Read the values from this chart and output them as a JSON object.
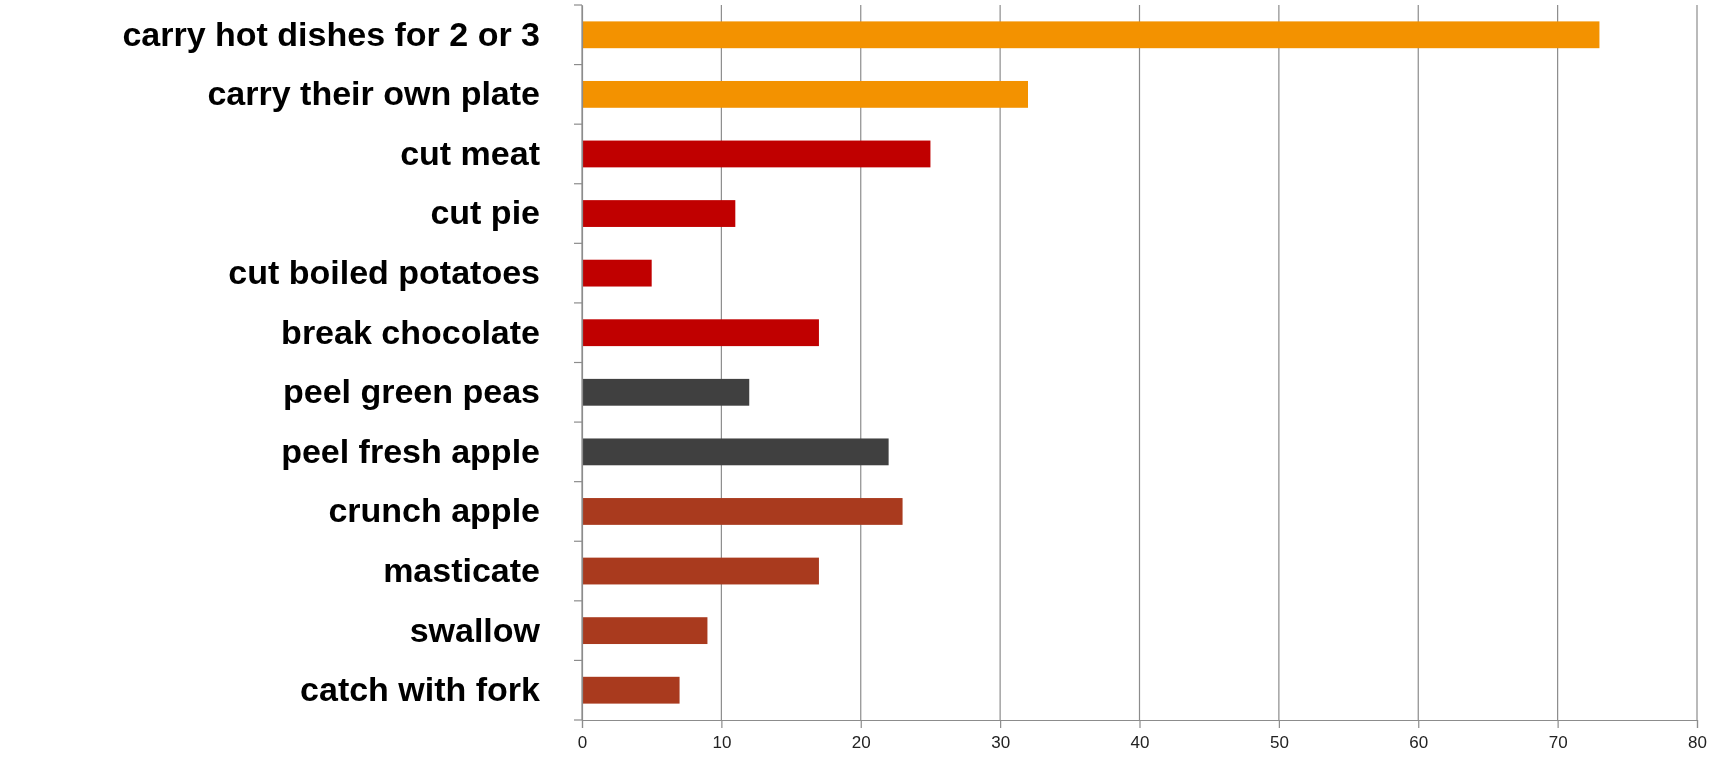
{
  "chart_data": {
    "type": "bar",
    "orientation": "horizontal",
    "categories": [
      "carry hot dishes for 2 or 3",
      "carry their own plate",
      "cut meat",
      "cut pie",
      "cut boiled potatoes",
      "break chocolate",
      "peel green peas",
      "peel fresh apple",
      "crunch apple",
      "masticate",
      "swallow",
      "catch with fork"
    ],
    "values": [
      73,
      32,
      25,
      11,
      5,
      17,
      12,
      22,
      23,
      17,
      9,
      7
    ],
    "colors": [
      "#f39200",
      "#f39200",
      "#c00000",
      "#c00000",
      "#c00000",
      "#c00000",
      "#404040",
      "#404040",
      "#a93a1e",
      "#a93a1e",
      "#a93a1e",
      "#a93a1e"
    ],
    "xlim": [
      0,
      80
    ],
    "xticks": [
      0,
      10,
      20,
      30,
      40,
      50,
      60,
      70,
      80
    ],
    "grid": "x"
  }
}
